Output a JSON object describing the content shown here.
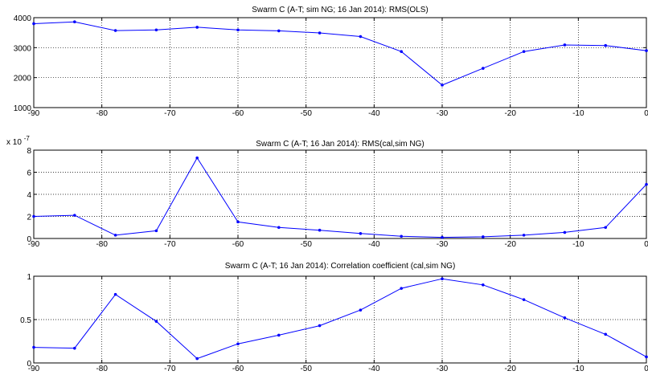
{
  "colors": {
    "series": "#0000ff",
    "axes": "#000000",
    "grid": "#000000",
    "background": "#ffffff"
  },
  "chart_data": [
    {
      "type": "line",
      "title": "Swarm C (A-T; sim NG; 16 Jan 2014): RMS(OLS)",
      "xlabel": "",
      "ylabel": "",
      "xlim": [
        -90,
        0
      ],
      "ylim": [
        1000,
        4000
      ],
      "xticks": [
        -90,
        -80,
        -70,
        -60,
        -50,
        -40,
        -30,
        -20,
        -10,
        0
      ],
      "xtick_labels": [
        "-90",
        "-80",
        "-70",
        "-60",
        "-50",
        "-40",
        "-30",
        "-20",
        "-10",
        "0"
      ],
      "yticks": [
        1000,
        2000,
        3000,
        4000
      ],
      "ytick_labels": [
        "1000",
        "2000",
        "3000",
        "4000"
      ],
      "exponent_label": "",
      "grid": true,
      "marker": "dot",
      "x": [
        -90,
        -84,
        -78,
        -72,
        -66,
        -60,
        -54,
        -48,
        -42,
        -36,
        -30,
        -24,
        -18,
        -12,
        -6,
        0
      ],
      "y": [
        3800,
        3860,
        3570,
        3590,
        3680,
        3590,
        3560,
        3490,
        3370,
        2870,
        1750,
        2310,
        2870,
        3090,
        3070,
        2900
      ]
    },
    {
      "type": "line",
      "title": "Swarm C (A-T; 16 Jan 2014): RMS(cal,sim NG)",
      "xlabel": "",
      "ylabel": "",
      "xlim": [
        -90,
        0
      ],
      "ylim": [
        0,
        8
      ],
      "xticks": [
        -90,
        -80,
        -70,
        -60,
        -50,
        -40,
        -30,
        -20,
        -10,
        0
      ],
      "xtick_labels": [
        "-90",
        "-80",
        "-70",
        "-60",
        "-50",
        "-40",
        "-30",
        "-20",
        "-10",
        "0"
      ],
      "yticks": [
        0,
        2,
        4,
        6,
        8
      ],
      "ytick_labels": [
        "0",
        "2",
        "4",
        "6",
        "8"
      ],
      "exponent_label": "x 10",
      "exponent_power": "-7",
      "grid": true,
      "marker": "dot",
      "x": [
        -90,
        -84,
        -78,
        -72,
        -66,
        -60,
        -54,
        -48,
        -42,
        -36,
        -30,
        -24,
        -18,
        -12,
        -6,
        0
      ],
      "y": [
        2.0,
        2.1,
        0.3,
        0.7,
        7.3,
        1.5,
        1.0,
        0.75,
        0.45,
        0.2,
        0.1,
        0.15,
        0.3,
        0.55,
        1.0,
        4.9
      ]
    },
    {
      "type": "line",
      "title": "Swarm C (A-T; 16 Jan 2014): Correlation coefficient (cal,sim NG)",
      "xlabel": "",
      "ylabel": "",
      "xlim": [
        -90,
        0
      ],
      "ylim": [
        0,
        1
      ],
      "xticks": [
        -90,
        -80,
        -70,
        -60,
        -50,
        -40,
        -30,
        -20,
        -10,
        0
      ],
      "xtick_labels": [
        "-90",
        "-80",
        "-70",
        "-60",
        "-50",
        "-40",
        "-30",
        "-20",
        "-10",
        "0"
      ],
      "yticks": [
        0,
        0.5,
        1
      ],
      "ytick_labels": [
        "0",
        "0.5",
        "1"
      ],
      "exponent_label": "",
      "grid": true,
      "marker": "dot",
      "x": [
        -90,
        -84,
        -78,
        -72,
        -66,
        -60,
        -54,
        -48,
        -42,
        -36,
        -30,
        -24,
        -18,
        -12,
        -6,
        0
      ],
      "y": [
        0.18,
        0.17,
        0.79,
        0.48,
        0.05,
        0.22,
        0.32,
        0.43,
        0.61,
        0.86,
        0.97,
        0.9,
        0.73,
        0.52,
        0.33,
        0.07
      ]
    }
  ]
}
